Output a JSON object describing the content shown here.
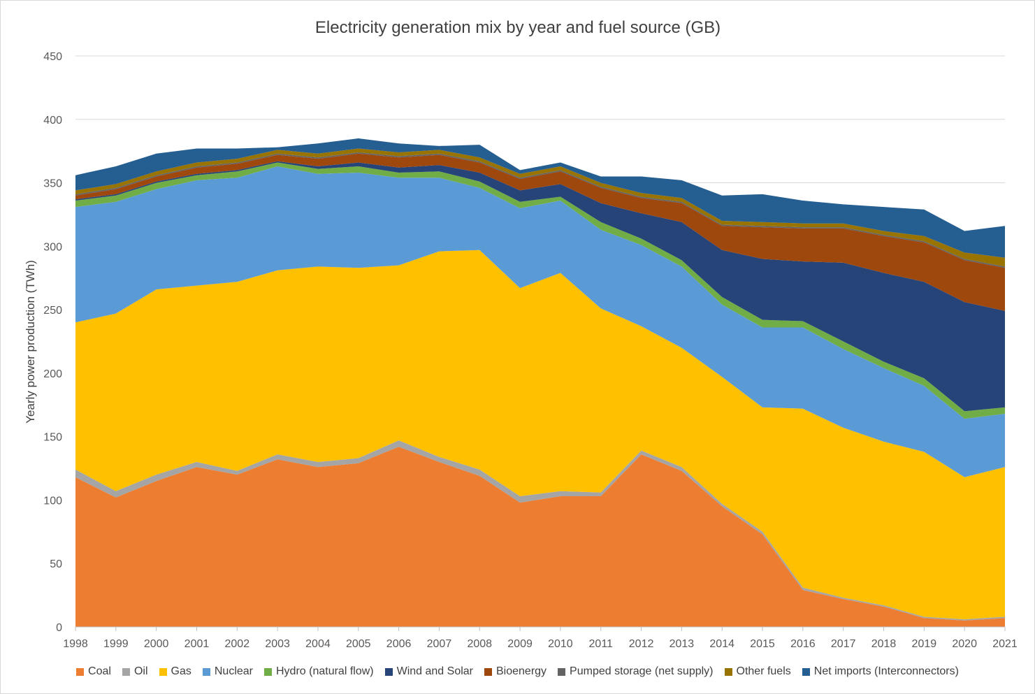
{
  "chart_data": {
    "type": "area",
    "stacked": true,
    "title": "Electricity generation mix by year and fuel source (GB)",
    "xlabel": "",
    "ylabel": "Yearly power production (TWh)",
    "ylim": [
      0,
      450
    ],
    "yticks": [
      0,
      50,
      100,
      150,
      200,
      250,
      300,
      350,
      400,
      450
    ],
    "grid": "horizontal",
    "legend_position": "bottom",
    "x": [
      "1998",
      "1999",
      "2000",
      "2001",
      "2002",
      "2003",
      "2004",
      "2005",
      "2006",
      "2007",
      "2008",
      "2009",
      "2010",
      "2011",
      "2012",
      "2013",
      "2014",
      "2015",
      "2016",
      "2017",
      "2018",
      "2019",
      "2020",
      "2021"
    ],
    "series": [
      {
        "name": "Coal",
        "color": "#ED7D31",
        "values": [
          118,
          102,
          115,
          126,
          120,
          132,
          126,
          129,
          142,
          130,
          119,
          98,
          103,
          103,
          136,
          123,
          95,
          73,
          29,
          22,
          16,
          7,
          5,
          7
        ]
      },
      {
        "name": "Oil",
        "color": "#A5A5A5",
        "values": [
          6,
          5,
          5,
          4,
          3,
          4,
          4,
          4,
          5,
          4,
          5,
          5,
          4,
          3,
          3,
          3,
          2,
          2,
          2,
          1,
          1,
          1,
          1,
          1
        ]
      },
      {
        "name": "Gas",
        "color": "#FFC000",
        "values": [
          116,
          140,
          146,
          139,
          149,
          145,
          154,
          150,
          138,
          162,
          173,
          164,
          172,
          145,
          98,
          94,
          100,
          98,
          141,
          134,
          129,
          130,
          112,
          118
        ]
      },
      {
        "name": "Nuclear",
        "color": "#5B9BD5",
        "values": [
          91,
          88,
          79,
          83,
          82,
          82,
          73,
          75,
          69,
          58,
          49,
          63,
          57,
          62,
          64,
          64,
          57,
          63,
          64,
          62,
          58,
          52,
          46,
          42
        ]
      },
      {
        "name": "Hydro (natural flow)",
        "color": "#70AD47",
        "values": [
          5,
          5,
          5,
          4,
          5,
          3,
          4,
          5,
          4,
          5,
          5,
          5,
          3,
          6,
          5,
          5,
          6,
          6,
          5,
          6,
          5,
          6,
          6,
          5
        ]
      },
      {
        "name": "Wind and Solar",
        "color": "#264478",
        "values": [
          1,
          1,
          1,
          1,
          1,
          1,
          2,
          3,
          4,
          5,
          7,
          9,
          10,
          15,
          20,
          30,
          37,
          48,
          47,
          62,
          70,
          76,
          86,
          76
        ]
      },
      {
        "name": "Bioenergy",
        "color": "#9E480E",
        "values": [
          3,
          4,
          4,
          5,
          5,
          5,
          6,
          7,
          8,
          8,
          8,
          9,
          10,
          12,
          12,
          15,
          19,
          25,
          26,
          27,
          29,
          31,
          33,
          34
        ]
      },
      {
        "name": "Pumped storage (net supply)",
        "color": "#636363",
        "values": [
          1,
          1,
          1,
          1,
          1,
          1,
          1,
          1,
          1,
          1,
          1,
          1,
          1,
          1,
          1,
          1,
          1,
          1,
          1,
          1,
          1,
          1,
          1,
          1
        ]
      },
      {
        "name": "Other fuels",
        "color": "#997300",
        "values": [
          3,
          3,
          3,
          3,
          3,
          3,
          3,
          3,
          3,
          3,
          3,
          3,
          3,
          3,
          3,
          3,
          3,
          3,
          3,
          3,
          3,
          4,
          5,
          7
        ]
      },
      {
        "name": "Net imports (Interconnectors)",
        "color": "#255E91",
        "values": [
          12,
          14,
          14,
          11,
          8,
          2,
          8,
          8,
          7,
          3,
          10,
          3,
          3,
          5,
          13,
          14,
          20,
          22,
          18,
          15,
          19,
          21,
          17,
          25
        ]
      }
    ]
  }
}
